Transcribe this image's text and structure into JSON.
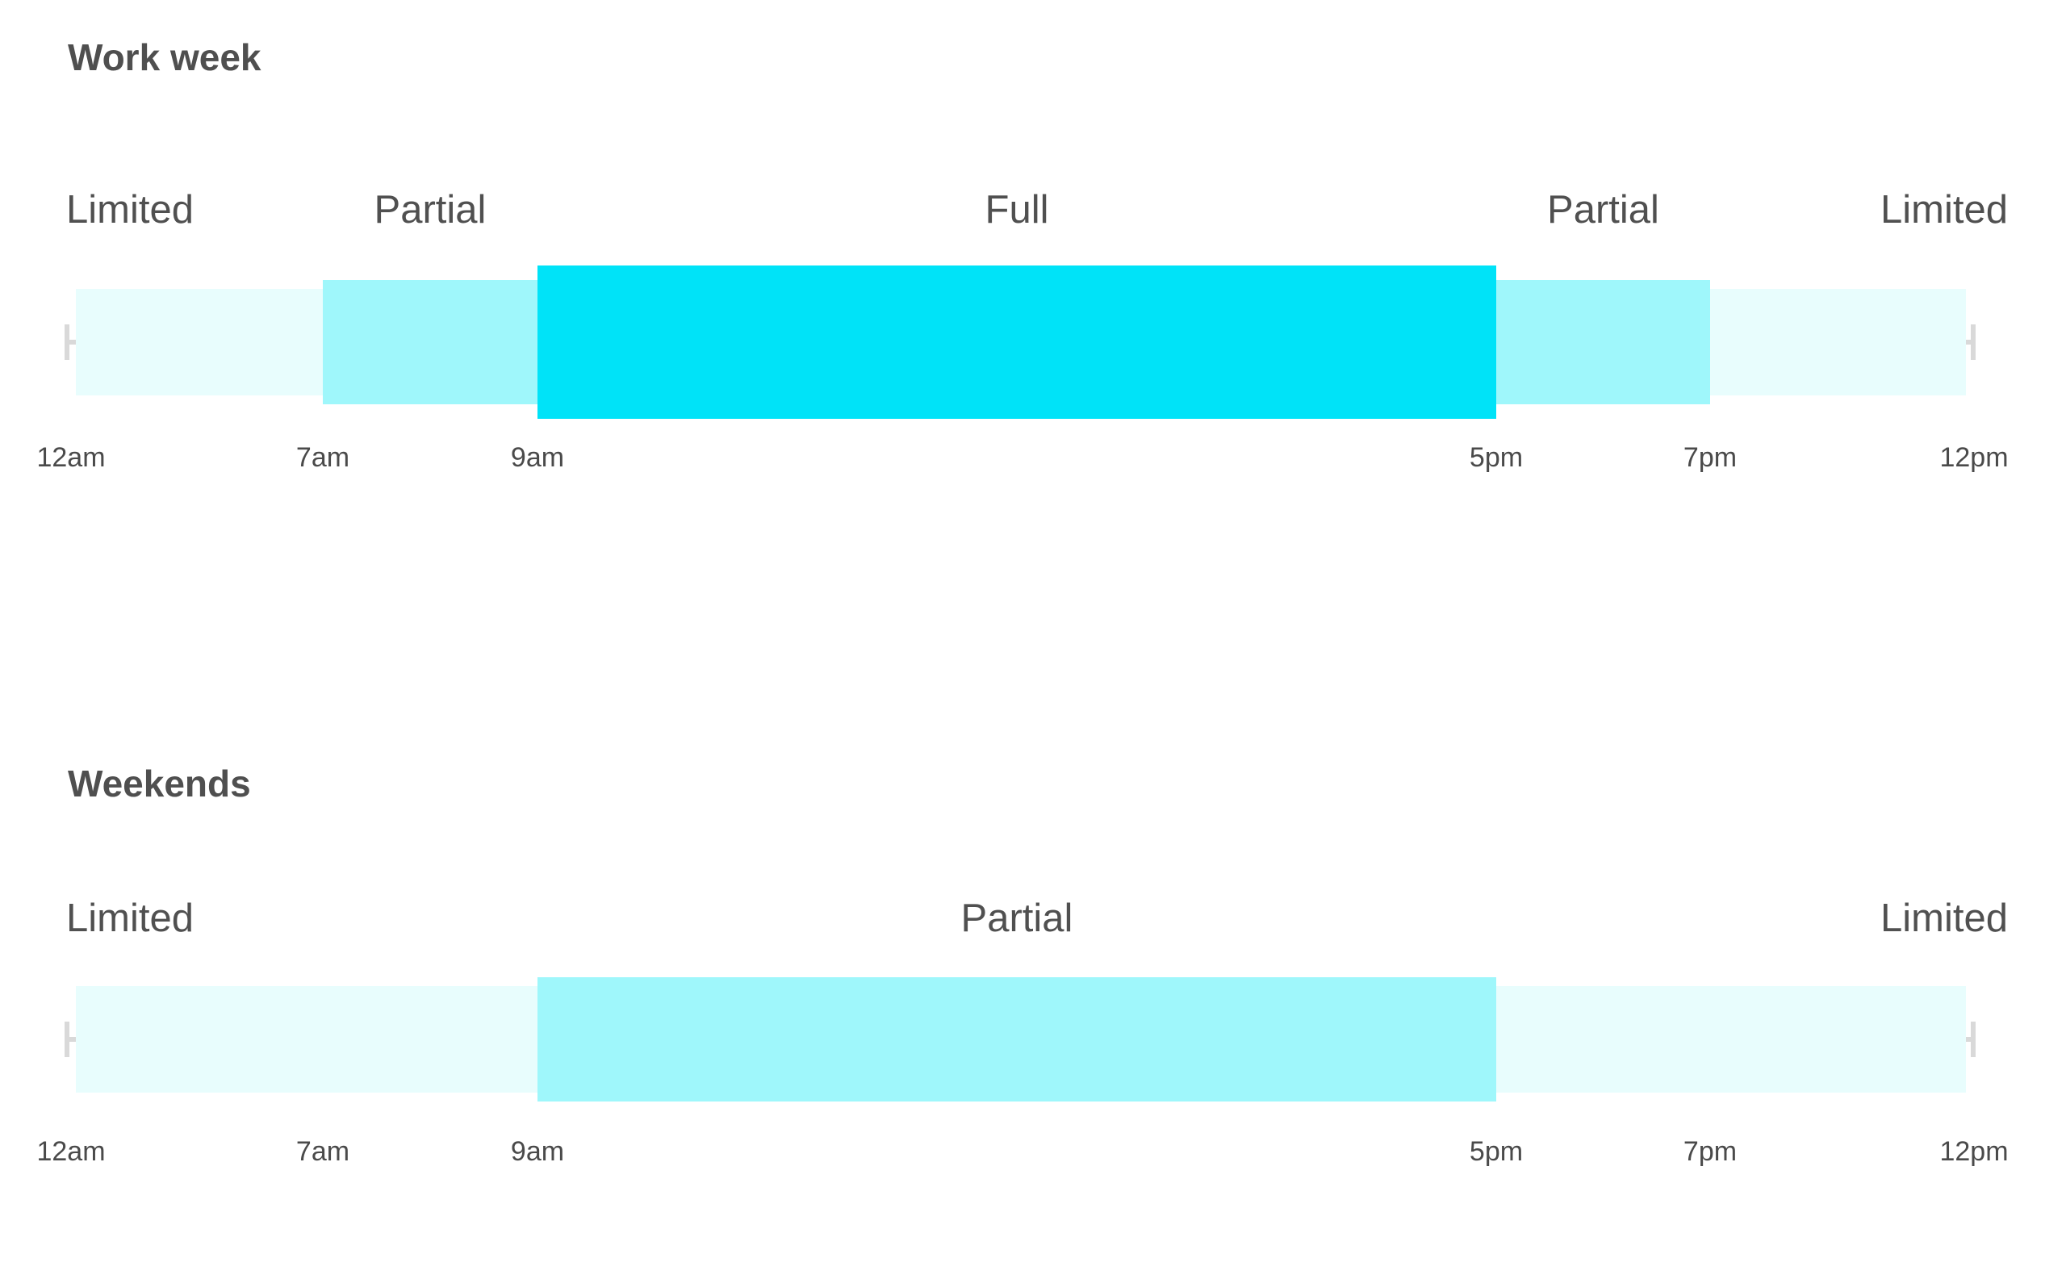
{
  "colors": {
    "limited": "#e8fdfd",
    "partial": "#9ff7fb",
    "full": "#00e3f8",
    "text": "#525252",
    "cap": "#d9d9d9"
  },
  "schedules": [
    {
      "title": "Work week",
      "ticks": [
        "12am",
        "7am",
        "9am",
        "5pm",
        "7pm",
        "12pm"
      ],
      "zones": [
        {
          "label": "Limited",
          "start": 0,
          "end": 7,
          "level": "limited"
        },
        {
          "label": "Partial",
          "start": 7,
          "end": 9,
          "level": "partial"
        },
        {
          "label": "Full",
          "start": 9,
          "end": 17,
          "level": "full"
        },
        {
          "label": "Partial",
          "start": 17,
          "end": 19,
          "level": "partial"
        },
        {
          "label": "Limited",
          "start": 19,
          "end": 24,
          "level": "limited"
        }
      ]
    },
    {
      "title": "Weekends",
      "ticks": [
        "12am",
        "7am",
        "9am",
        "5pm",
        "7pm",
        "12pm"
      ],
      "zones": [
        {
          "label": "Limited",
          "start": 0,
          "end": 9,
          "level": "limited"
        },
        {
          "label": "Partial",
          "start": 9,
          "end": 17,
          "level": "partial"
        },
        {
          "label": "Limited",
          "start": 17,
          "end": 24,
          "level": "limited"
        }
      ]
    }
  ]
}
